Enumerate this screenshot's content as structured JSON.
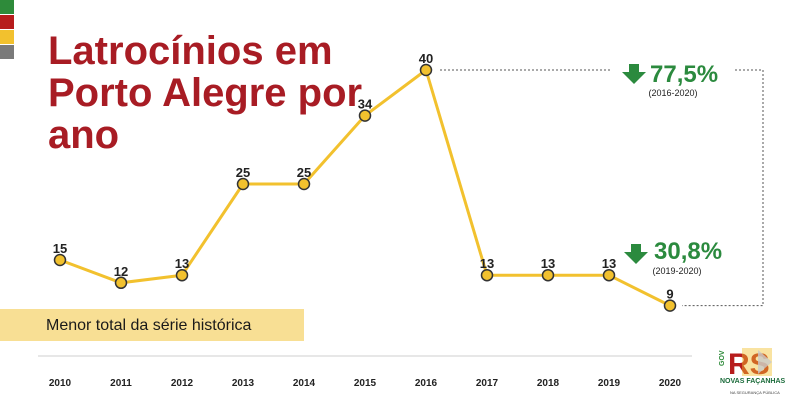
{
  "colors": {
    "title": "#a81c24",
    "line": "#f2c12e",
    "marker_fill": "#f2c12e",
    "marker_stroke": "#333333",
    "drop": "#2b8a3e",
    "highlight": "#f8df94",
    "stripes": [
      "#2e8b3a",
      "#b71c1c",
      "#f2c12e",
      "#7a7a7a"
    ]
  },
  "title": "Latrocínios em Porto Alegre por ano",
  "note": "Menor total da série histórica",
  "chart_data": {
    "type": "line",
    "title": "Latrocínios em Porto Alegre por ano",
    "xlabel": "",
    "ylabel": "",
    "categories": [
      "2010",
      "2011",
      "2012",
      "2013",
      "2014",
      "2015",
      "2016",
      "2017",
      "2018",
      "2019",
      "2020"
    ],
    "series": [
      {
        "values": [
          15,
          12,
          13,
          25,
          25,
          34,
          40,
          13,
          13,
          13,
          9
        ]
      }
    ],
    "ylim": [
      0,
      45
    ],
    "grid": false,
    "data_labels": true,
    "annotations": [
      {
        "percent": "77,5%",
        "period": "(2016-2020)",
        "direction": "down"
      },
      {
        "percent": "30,8%",
        "period": "(2019-2020)",
        "direction": "down"
      }
    ]
  },
  "logo": {
    "tagline": "NOVAS FAÇANHAS",
    "sub": "NA SEGURANÇA PÚBLICA",
    "gov": "GOV",
    "mark": "RS",
    "icon": "rs-government-logo"
  }
}
